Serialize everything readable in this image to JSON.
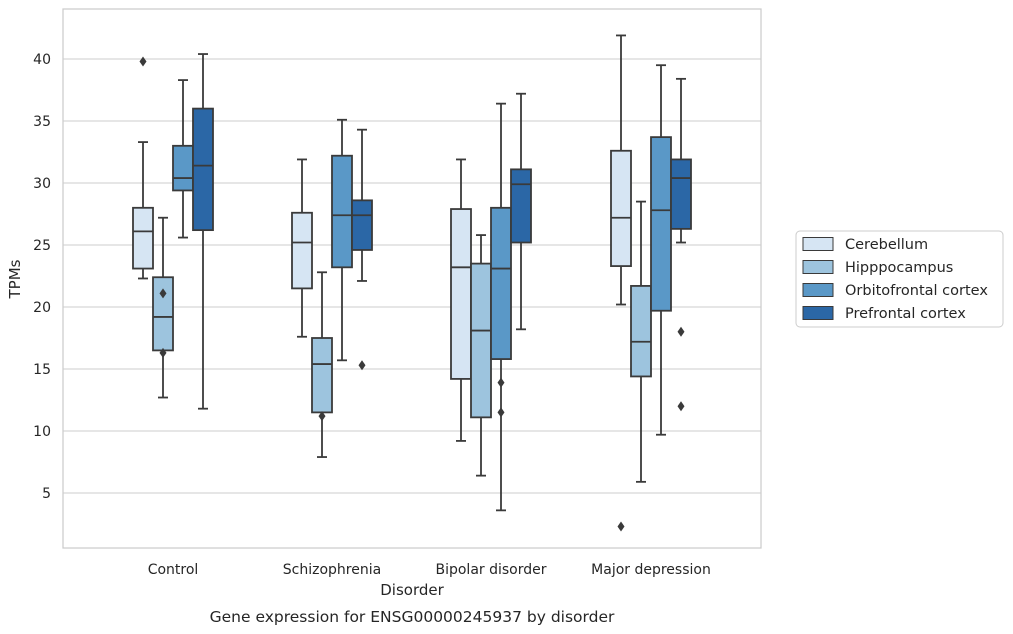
{
  "chart_data": {
    "type": "boxplot",
    "xlabel": "Disorder",
    "ylabel": "TPMs",
    "caption": "Gene expression for ENSG00000245937 by disorder",
    "ylim": [
      0.5,
      44
    ],
    "yticks": [
      5,
      10,
      15,
      20,
      25,
      30,
      35,
      40
    ],
    "grid": "horizontal",
    "legend_position": "right",
    "categories": [
      "Control",
      "Schizophrenia",
      "Bipolar disorder",
      "Major depression"
    ],
    "series": [
      {
        "name": "Cerebellum",
        "color": "#d6e5f3",
        "boxes": [
          {
            "whisker_low": 22.3,
            "q1": 23.1,
            "median": 26.1,
            "q3": 28.0,
            "whisker_high": 33.3,
            "outliers": [
              39.8
            ]
          },
          {
            "whisker_low": 17.6,
            "q1": 21.5,
            "median": 25.2,
            "q3": 27.6,
            "whisker_high": 31.9,
            "outliers": []
          },
          {
            "whisker_low": 9.2,
            "q1": 14.2,
            "median": 23.2,
            "q3": 27.9,
            "whisker_high": 31.9,
            "outliers": []
          },
          {
            "whisker_low": 20.2,
            "q1": 23.3,
            "median": 27.2,
            "q3": 32.6,
            "whisker_high": 41.9,
            "outliers": [
              2.3
            ]
          }
        ]
      },
      {
        "name": "Hipppocampus",
        "color": "#9dc4de",
        "boxes": [
          {
            "whisker_low": 12.7,
            "q1": 16.5,
            "median": 19.2,
            "q3": 22.4,
            "whisker_high": 27.2,
            "outliers": [
              21.1,
              16.3
            ]
          },
          {
            "whisker_low": 7.9,
            "q1": 11.5,
            "median": 15.4,
            "q3": 17.5,
            "whisker_high": 22.8,
            "outliers": [
              11.2
            ]
          },
          {
            "whisker_low": 6.4,
            "q1": 11.1,
            "median": 18.1,
            "q3": 23.5,
            "whisker_high": 25.8,
            "outliers": []
          },
          {
            "whisker_low": 5.9,
            "q1": 14.4,
            "median": 17.2,
            "q3": 21.7,
            "whisker_high": 28.5,
            "outliers": []
          }
        ]
      },
      {
        "name": "Orbitofrontal cortex",
        "color": "#5a98c7",
        "boxes": [
          {
            "whisker_low": 25.6,
            "q1": 29.4,
            "median": 30.4,
            "q3": 33.0,
            "whisker_high": 38.3,
            "outliers": []
          },
          {
            "whisker_low": 15.7,
            "q1": 23.2,
            "median": 27.4,
            "q3": 32.2,
            "whisker_high": 35.1,
            "outliers": []
          },
          {
            "whisker_low": 3.6,
            "q1": 15.8,
            "median": 23.1,
            "q3": 28.0,
            "whisker_high": 36.4,
            "outliers": [
              13.9,
              11.5
            ]
          },
          {
            "whisker_low": 9.7,
            "q1": 19.7,
            "median": 27.8,
            "q3": 33.7,
            "whisker_high": 39.5,
            "outliers": []
          }
        ]
      },
      {
        "name": "Prefrontal cortex",
        "color": "#2b67a6",
        "boxes": [
          {
            "whisker_low": 11.8,
            "q1": 26.2,
            "median": 31.4,
            "q3": 36.0,
            "whisker_high": 40.4,
            "outliers": []
          },
          {
            "whisker_low": 22.1,
            "q1": 24.6,
            "median": 27.4,
            "q3": 28.6,
            "whisker_high": 34.3,
            "outliers": [
              15.3
            ]
          },
          {
            "whisker_low": 18.2,
            "q1": 25.2,
            "median": 29.9,
            "q3": 31.1,
            "whisker_high": 37.2,
            "outliers": []
          },
          {
            "whisker_low": 25.2,
            "q1": 26.3,
            "median": 30.4,
            "q3": 31.9,
            "whisker_high": 38.4,
            "outliers": [
              18.0,
              12.0
            ]
          }
        ]
      }
    ]
  }
}
